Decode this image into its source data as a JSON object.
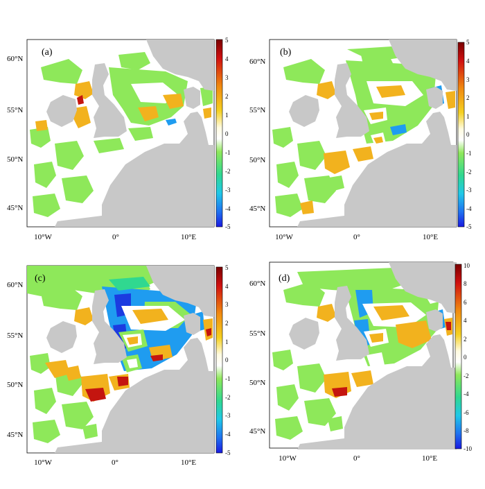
{
  "figure": {
    "panels": [
      {
        "label": "(a)",
        "lat_ticks": [
          "60°N",
          "55°N",
          "50°N",
          "45°N"
        ],
        "lon_ticks": [
          "10°W",
          "0°",
          "10°E"
        ],
        "colorbar": {
          "ticks": [
            "5",
            "4",
            "3",
            "2",
            "1",
            "0",
            "-1",
            "-2",
            "-3",
            "-4",
            "-5"
          ],
          "min": -5,
          "max": 5
        }
      },
      {
        "label": "(b)",
        "lat_ticks": [
          "60°N",
          "55°N",
          "50°N",
          "45°N"
        ],
        "lon_ticks": [
          "10°W",
          "0°",
          "10°E"
        ],
        "colorbar": {
          "ticks": [
            "5",
            "4",
            "3",
            "2",
            "1",
            "0",
            "-1",
            "-2",
            "-3",
            "-4",
            "-5"
          ],
          "min": -5,
          "max": 5
        }
      },
      {
        "label": "(c)",
        "lat_ticks": [
          "60°N",
          "55°N",
          "50°N",
          "45°N"
        ],
        "lon_ticks": [
          "10°W",
          "0°",
          "10°E"
        ],
        "colorbar": {
          "ticks": [
            "5",
            "4",
            "3",
            "2",
            "1",
            "0",
            "-1",
            "-2",
            "-3",
            "-4",
            "-5"
          ],
          "min": -5,
          "max": 5
        }
      },
      {
        "label": "(d)",
        "lat_ticks": [
          "60°N",
          "55°N",
          "50°N",
          "45°N"
        ],
        "lon_ticks": [
          "10°W",
          "0°",
          "10°E"
        ],
        "colorbar": {
          "ticks": [
            "10",
            "8",
            "6",
            "4",
            "2",
            "0",
            "-2",
            "-4",
            "-6",
            "-8",
            "-10"
          ],
          "min": -10,
          "max": 10
        }
      }
    ],
    "colors": {
      "land": "#c8c8c8",
      "sea_gap": "#ffffff",
      "near_zero": "#8ee85a",
      "positive": "#f2b21e",
      "strong_positive": "#c4150f",
      "negative": "#1f9cf0",
      "strong_negative": "#1b3be0"
    }
  }
}
